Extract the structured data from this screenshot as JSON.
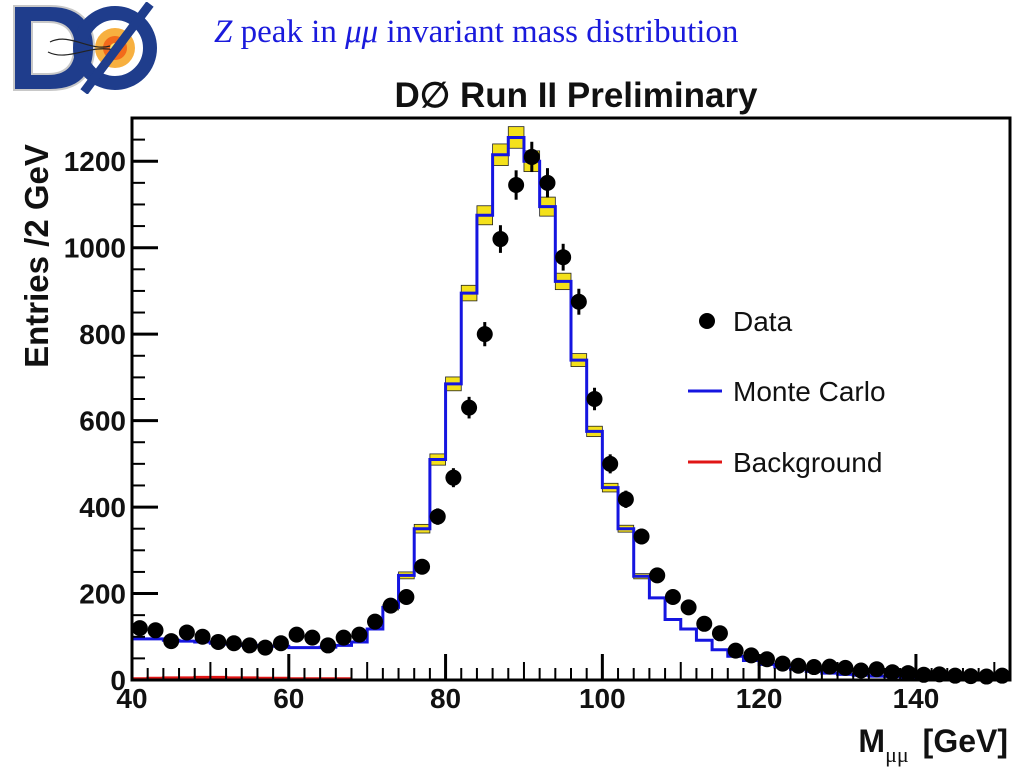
{
  "slide": {
    "title_italic": "Z",
    "title_mid": " peak in ",
    "title_symbol": "μμ",
    "title_rest": " invariant mass distribution",
    "logo_text": "DØ"
  },
  "chart_data": {
    "type": "histogram",
    "title": "D∅ Run II Preliminary",
    "xlabel": "M",
    "xlabel_sub": "μμ",
    "xlabel_unit": "[GeV]",
    "ylabel": "Entries /2 GeV",
    "xlim": [
      40,
      152
    ],
    "ylim": [
      0,
      1300
    ],
    "x_ticks": [
      40,
      60,
      80,
      100,
      120,
      140
    ],
    "y_ticks": [
      0,
      200,
      400,
      600,
      800,
      1000,
      1200
    ],
    "grid": false,
    "legend_position": "right",
    "legend": [
      {
        "label": "Data",
        "marker": "dot",
        "color": "#000000"
      },
      {
        "label": "Monte Carlo",
        "marker": "line",
        "color": "#1515e0"
      },
      {
        "label": "Background",
        "marker": "line",
        "color": "#e01515"
      }
    ],
    "bin_edges_start": 40,
    "bin_width": 2,
    "data_x": [
      41,
      43,
      45,
      47,
      49,
      51,
      53,
      55,
      57,
      59,
      61,
      63,
      65,
      67,
      69,
      71,
      73,
      75,
      77,
      79,
      81,
      83,
      85,
      87,
      89,
      91,
      93,
      95,
      97,
      99,
      101,
      103,
      105,
      107,
      109,
      111,
      113,
      115,
      117,
      119,
      121,
      123,
      125,
      127,
      129,
      131,
      133,
      135,
      137,
      139,
      141,
      143,
      145,
      147,
      149,
      151
    ],
    "data_y": [
      120,
      115,
      90,
      110,
      100,
      88,
      85,
      80,
      75,
      85,
      105,
      98,
      80,
      98,
      105,
      135,
      172,
      192,
      262,
      378,
      468,
      630,
      800,
      1020,
      1145,
      1210,
      1150,
      978,
      875,
      650,
      500,
      418,
      332,
      242,
      192,
      168,
      130,
      108,
      68,
      57,
      48,
      38,
      33,
      30,
      31,
      28,
      22,
      25,
      18,
      16,
      12,
      13,
      10,
      9,
      8,
      10
    ],
    "data_err": [
      11,
      11,
      10,
      11,
      10,
      10,
      10,
      9,
      9,
      10,
      10,
      10,
      9,
      10,
      10,
      12,
      13,
      14,
      16,
      19,
      22,
      25,
      28,
      32,
      34,
      35,
      34,
      31,
      30,
      26,
      22,
      20,
      18,
      16,
      14,
      13,
      12,
      11,
      8,
      8,
      7,
      6,
      6,
      6,
      6,
      5,
      5,
      5,
      4,
      4,
      4,
      4,
      3,
      3,
      3,
      3
    ],
    "mc_y": [
      95,
      95,
      92,
      90,
      88,
      85,
      83,
      80,
      78,
      78,
      75,
      75,
      76,
      80,
      88,
      118,
      168,
      242,
      350,
      510,
      685,
      895,
      1075,
      1215,
      1255,
      1200,
      1095,
      922,
      740,
      575,
      445,
      350,
      240,
      190,
      140,
      118,
      92,
      70,
      55,
      45,
      36,
      30,
      25,
      20,
      16,
      13,
      11,
      9,
      8,
      7,
      6,
      6,
      5,
      5,
      5,
      5
    ],
    "mc_band": [
      4,
      4,
      4,
      4,
      4,
      4,
      4,
      4,
      4,
      4,
      4,
      4,
      4,
      4,
      4,
      5,
      6,
      8,
      10,
      13,
      16,
      18,
      22,
      25,
      25,
      24,
      22,
      19,
      15,
      12,
      10,
      8,
      6,
      5,
      4,
      4,
      3,
      3,
      3,
      3,
      3,
      3,
      3,
      3,
      3,
      3,
      3,
      3,
      3,
      3,
      3,
      3,
      3,
      3,
      3,
      3
    ],
    "bkg_y": [
      3,
      4,
      5,
      5,
      6,
      6,
      5,
      5,
      4,
      4,
      3,
      3,
      3,
      3,
      0,
      0,
      0,
      0,
      0,
      0,
      0,
      0,
      0,
      0,
      0,
      0,
      0,
      0,
      0,
      0,
      0,
      0,
      0,
      0,
      0,
      0,
      0,
      0,
      0,
      0,
      0,
      0,
      0,
      0,
      0,
      0,
      0,
      0,
      0,
      0,
      0,
      0,
      0,
      0,
      0,
      0
    ]
  }
}
